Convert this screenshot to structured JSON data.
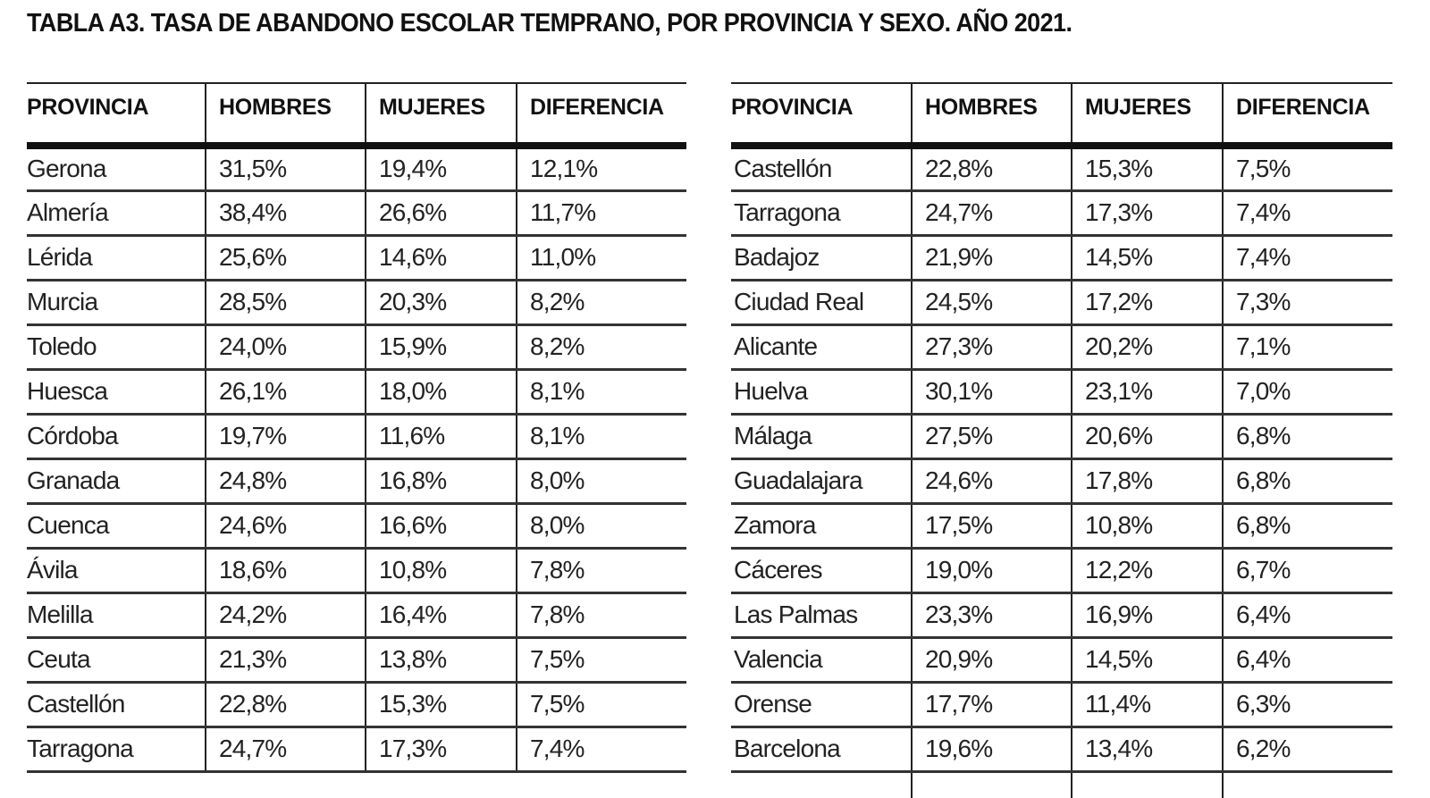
{
  "title": "TABLA A3. TASA DE ABANDONO ESCOLAR TEMPRANO, POR PROVINCIA Y SEXO. AÑO 2021.",
  "columns": [
    "PROVINCIA",
    "HOMBRES",
    "MUJERES",
    "DIFERENCIA"
  ],
  "left_table": {
    "rows": [
      {
        "provincia": "Gerona",
        "hombres": "31,5%",
        "mujeres": "19,4%",
        "diferencia": "12,1%"
      },
      {
        "provincia": "Almería",
        "hombres": "38,4%",
        "mujeres": "26,6%",
        "diferencia": "11,7%"
      },
      {
        "provincia": "Lérida",
        "hombres": "25,6%",
        "mujeres": "14,6%",
        "diferencia": "11,0%"
      },
      {
        "provincia": "Murcia",
        "hombres": "28,5%",
        "mujeres": "20,3%",
        "diferencia": "8,2%"
      },
      {
        "provincia": "Toledo",
        "hombres": "24,0%",
        "mujeres": "15,9%",
        "diferencia": "8,2%"
      },
      {
        "provincia": "Huesca",
        "hombres": "26,1%",
        "mujeres": "18,0%",
        "diferencia": "8,1%"
      },
      {
        "provincia": "Córdoba",
        "hombres": "19,7%",
        "mujeres": "11,6%",
        "diferencia": "8,1%"
      },
      {
        "provincia": "Granada",
        "hombres": "24,8%",
        "mujeres": "16,8%",
        "diferencia": "8,0%"
      },
      {
        "provincia": "Cuenca",
        "hombres": "24,6%",
        "mujeres": "16,6%",
        "diferencia": "8,0%"
      },
      {
        "provincia": "Ávila",
        "hombres": "18,6%",
        "mujeres": "10,8%",
        "diferencia": "7,8%"
      },
      {
        "provincia": "Melilla",
        "hombres": "24,2%",
        "mujeres": "16,4%",
        "diferencia": "7,8%"
      },
      {
        "provincia": "Ceuta",
        "hombres": "21,3%",
        "mujeres": "13,8%",
        "diferencia": "7,5%"
      },
      {
        "provincia": "Castellón",
        "hombres": "22,8%",
        "mujeres": "15,3%",
        "diferencia": "7,5%"
      },
      {
        "provincia": "Tarragona",
        "hombres": "24,7%",
        "mujeres": "17,3%",
        "diferencia": "7,4%"
      }
    ]
  },
  "right_table": {
    "rows": [
      {
        "provincia": "Castellón",
        "hombres": "22,8%",
        "mujeres": "15,3%",
        "diferencia": "7,5%"
      },
      {
        "provincia": "Tarragona",
        "hombres": "24,7%",
        "mujeres": "17,3%",
        "diferencia": "7,4%"
      },
      {
        "provincia": "Badajoz",
        "hombres": "21,9%",
        "mujeres": "14,5%",
        "diferencia": "7,4%"
      },
      {
        "provincia": "Ciudad Real",
        "hombres": "24,5%",
        "mujeres": "17,2%",
        "diferencia": "7,3%"
      },
      {
        "provincia": "Alicante",
        "hombres": "27,3%",
        "mujeres": "20,2%",
        "diferencia": "7,1%"
      },
      {
        "provincia": "Huelva",
        "hombres": "30,1%",
        "mujeres": "23,1%",
        "diferencia": "7,0%"
      },
      {
        "provincia": "Málaga",
        "hombres": "27,5%",
        "mujeres": "20,6%",
        "diferencia": "6,8%"
      },
      {
        "provincia": "Guadalajara",
        "hombres": "24,6%",
        "mujeres": "17,8%",
        "diferencia": "6,8%"
      },
      {
        "provincia": "Zamora",
        "hombres": "17,5%",
        "mujeres": "10,8%",
        "diferencia": "6,8%"
      },
      {
        "provincia": "Cáceres",
        "hombres": "19,0%",
        "mujeres": "12,2%",
        "diferencia": "6,7%"
      },
      {
        "provincia": "Las Palmas",
        "hombres": "23,3%",
        "mujeres": "16,9%",
        "diferencia": "6,4%"
      },
      {
        "provincia": "Valencia",
        "hombres": "20,9%",
        "mujeres": "14,5%",
        "diferencia": "6,4%"
      },
      {
        "provincia": "Orense",
        "hombres": "17,7%",
        "mujeres": "11,4%",
        "diferencia": "6,3%"
      },
      {
        "provincia": "Barcelona",
        "hombres": "19,6%",
        "mujeres": "13,4%",
        "diferencia": "6,2%"
      }
    ]
  }
}
